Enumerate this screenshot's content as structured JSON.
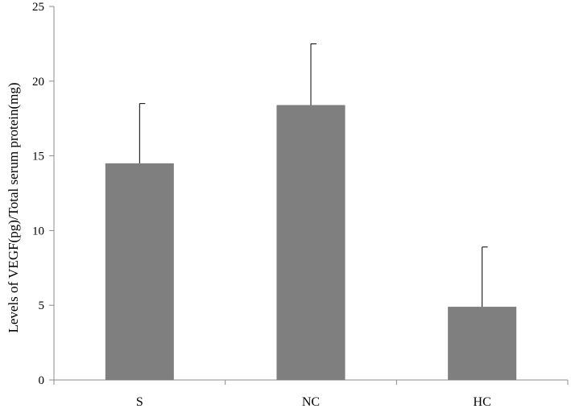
{
  "chart_data": {
    "type": "bar",
    "title": "",
    "xlabel": "",
    "ylabel": "Levels of VEGF(pg)/Total serum protein(mg)",
    "categories": [
      "S",
      "NC",
      "HC"
    ],
    "values": [
      14.5,
      18.4,
      4.9
    ],
    "error_upper": [
      4.0,
      4.1,
      4.0
    ],
    "ylim": [
      0,
      25
    ],
    "yticks": [
      0,
      5,
      10,
      15,
      20,
      25
    ],
    "grid": false,
    "legend": "none",
    "bar_color": "#7f7f7f"
  }
}
